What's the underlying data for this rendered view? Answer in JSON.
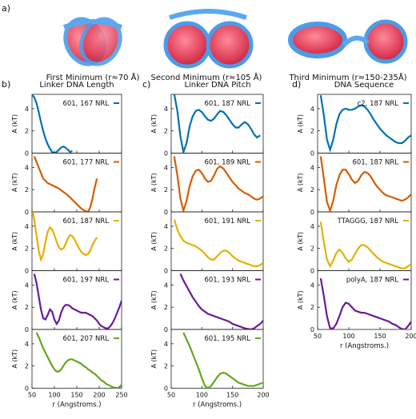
{
  "figure": {
    "panel_a_label": "a)",
    "minima": [
      {
        "caption": "First Minimum (r≈70 Å)"
      },
      {
        "caption": "Second Minimum (r≈105 Å)"
      },
      {
        "caption": "Third Minimum (r≈150-235Å)"
      }
    ]
  },
  "chart_data": [
    {
      "type": "line",
      "panel_label": "b)",
      "title": "Linker DNA Length",
      "xlabel": "r (Angstroms.)",
      "ylabel": "A (kT)",
      "xlim": [
        50,
        250
      ],
      "ylim": [
        0,
        5
      ],
      "xticks": [
        50,
        100,
        150,
        200,
        250
      ],
      "yticks": [
        0,
        2,
        4
      ],
      "series": [
        {
          "name": "601, 167 NRL",
          "color": "#0072b2",
          "x": [
            50,
            55,
            60,
            65,
            70,
            75,
            80,
            85,
            90,
            95,
            100,
            105,
            110,
            115,
            120,
            125,
            130,
            135,
            140
          ],
          "y": [
            5.3,
            5.0,
            4.5,
            3.7,
            2.8,
            2.0,
            1.3,
            0.8,
            0.4,
            0.1,
            0.0,
            0.1,
            0.3,
            0.5,
            0.6,
            0.5,
            0.3,
            0.1,
            0.2
          ]
        },
        {
          "name": "601, 177 NRL",
          "color": "#d55e00",
          "x": [
            55,
            60,
            65,
            70,
            75,
            80,
            85,
            90,
            95,
            100,
            110,
            120,
            130,
            140,
            150,
            160,
            170,
            175,
            180,
            185,
            190,
            195
          ],
          "y": [
            5.0,
            4.5,
            4.0,
            3.5,
            3.0,
            2.8,
            2.6,
            2.5,
            2.4,
            2.3,
            2.1,
            1.8,
            1.5,
            1.1,
            0.7,
            0.3,
            0.05,
            0.0,
            0.4,
            1.2,
            2.2,
            3.0
          ]
        },
        {
          "name": "601, 187 NRL",
          "color": "#e6b000",
          "x": [
            52,
            55,
            60,
            65,
            70,
            75,
            80,
            85,
            90,
            95,
            100,
            105,
            110,
            115,
            120,
            125,
            130,
            135,
            140,
            145,
            150,
            155,
            160,
            165,
            170,
            175,
            180,
            185,
            190,
            195
          ],
          "y": [
            5.3,
            4.6,
            3.2,
            1.8,
            1.0,
            1.5,
            2.6,
            3.5,
            3.9,
            3.7,
            3.2,
            2.6,
            2.1,
            1.9,
            2.0,
            2.4,
            2.9,
            3.2,
            3.1,
            2.8,
            2.4,
            2.0,
            1.7,
            1.5,
            1.4,
            1.5,
            1.8,
            2.3,
            2.7,
            3.0
          ]
        },
        {
          "name": "601, 197 NRL",
          "color": "#6a1b9a",
          "x": [
            55,
            60,
            65,
            70,
            75,
            80,
            85,
            90,
            95,
            100,
            105,
            110,
            115,
            120,
            125,
            130,
            135,
            140,
            145,
            150,
            155,
            160,
            165,
            170,
            175,
            180,
            185,
            190,
            195,
            200,
            205,
            210,
            215,
            220,
            225,
            230,
            235,
            240,
            245,
            250
          ],
          "y": [
            5.0,
            4.2,
            3.0,
            1.8,
            1.0,
            0.9,
            1.3,
            1.8,
            1.6,
            0.9,
            0.5,
            0.8,
            1.5,
            2.0,
            2.2,
            2.2,
            2.1,
            1.9,
            1.8,
            1.7,
            1.6,
            1.5,
            1.5,
            1.5,
            1.4,
            1.3,
            1.2,
            1.0,
            0.8,
            0.5,
            0.3,
            0.2,
            0.1,
            0.1,
            0.3,
            0.6,
            1.0,
            1.5,
            2.0,
            2.6
          ]
        },
        {
          "name": "601, 207 NRL",
          "color": "#66a61e",
          "x": [
            60,
            65,
            70,
            75,
            80,
            85,
            90,
            95,
            100,
            105,
            110,
            115,
            120,
            125,
            130,
            135,
            140,
            145,
            150,
            155,
            160,
            165,
            170,
            175,
            180,
            185,
            190,
            195,
            200,
            205,
            210,
            215,
            220,
            225,
            230,
            235,
            240,
            245,
            250
          ],
          "y": [
            5.0,
            4.6,
            4.1,
            3.6,
            3.2,
            2.8,
            2.4,
            2.0,
            1.7,
            1.5,
            1.5,
            1.7,
            2.0,
            2.3,
            2.5,
            2.6,
            2.6,
            2.5,
            2.4,
            2.3,
            2.2,
            2.0,
            1.9,
            1.7,
            1.6,
            1.4,
            1.3,
            1.1,
            0.9,
            0.7,
            0.6,
            0.4,
            0.3,
            0.2,
            0.1,
            0.05,
            0.0,
            0.1,
            0.3
          ]
        }
      ]
    },
    {
      "type": "line",
      "panel_label": "c)",
      "title": "Linker DNA Pitch",
      "xlabel": "r (Angstroms.)",
      "ylabel": "A (kT)",
      "xlim": [
        50,
        200
      ],
      "ylim": [
        0,
        5
      ],
      "xticks": [
        50,
        100,
        150,
        200
      ],
      "yticks": [
        0,
        2,
        4
      ],
      "series": [
        {
          "name": "601, 187 NRL",
          "color": "#0072b2",
          "x": [
            55,
            60,
            65,
            70,
            75,
            80,
            85,
            90,
            95,
            100,
            105,
            110,
            115,
            120,
            125,
            130,
            135,
            140,
            145,
            150,
            155,
            160,
            165,
            170,
            175,
            180,
            185,
            190,
            195
          ],
          "y": [
            5.3,
            3.8,
            1.5,
            0.1,
            0.9,
            2.4,
            3.3,
            3.8,
            3.9,
            3.7,
            3.3,
            3.0,
            2.9,
            3.1,
            3.5,
            3.8,
            3.7,
            3.4,
            3.0,
            2.6,
            2.3,
            2.3,
            2.6,
            2.8,
            2.6,
            2.2,
            1.7,
            1.4,
            1.6
          ]
        },
        {
          "name": "601, 189 NRL",
          "color": "#d55e00",
          "x": [
            55,
            60,
            65,
            70,
            75,
            80,
            85,
            90,
            95,
            100,
            105,
            110,
            115,
            120,
            125,
            130,
            135,
            140,
            145,
            150,
            155,
            160,
            165,
            170,
            175,
            180,
            185,
            190,
            195,
            200
          ],
          "y": [
            5.0,
            3.3,
            1.2,
            0.1,
            1.0,
            2.3,
            3.2,
            3.7,
            3.8,
            3.5,
            3.0,
            2.7,
            2.8,
            3.3,
            3.9,
            4.1,
            3.9,
            3.5,
            3.1,
            2.7,
            2.4,
            2.1,
            1.9,
            1.7,
            1.6,
            1.4,
            1.2,
            1.1,
            1.2,
            1.4
          ]
        },
        {
          "name": "601, 191 NRL",
          "color": "#e6b000",
          "x": [
            55,
            60,
            65,
            70,
            75,
            80,
            85,
            90,
            95,
            100,
            105,
            110,
            115,
            120,
            125,
            130,
            135,
            140,
            145,
            150,
            155,
            160,
            165,
            170,
            175,
            180,
            185,
            190,
            195,
            200
          ],
          "y": [
            4.6,
            3.7,
            3.1,
            2.7,
            2.5,
            2.4,
            2.3,
            2.2,
            2.0,
            1.8,
            1.5,
            1.2,
            1.0,
            1.0,
            1.3,
            1.6,
            1.8,
            1.8,
            1.6,
            1.3,
            1.1,
            0.9,
            0.8,
            0.7,
            0.6,
            0.5,
            0.4,
            0.4,
            0.5,
            0.7
          ]
        },
        {
          "name": "601, 193 NRL",
          "color": "#6a1b9a",
          "x": [
            65,
            70,
            75,
            80,
            85,
            90,
            95,
            100,
            105,
            110,
            115,
            120,
            125,
            130,
            135,
            140,
            145,
            150,
            155,
            160,
            165,
            170,
            175,
            180,
            185,
            190,
            195,
            200
          ],
          "y": [
            5.0,
            4.4,
            3.9,
            3.4,
            2.9,
            2.5,
            2.1,
            1.8,
            1.6,
            1.4,
            1.3,
            1.2,
            1.1,
            1.0,
            0.9,
            0.8,
            0.7,
            0.5,
            0.4,
            0.3,
            0.2,
            0.1,
            0.05,
            0.0,
            0.1,
            0.3,
            0.5,
            0.8
          ]
        },
        {
          "name": "601, 195 NRL",
          "color": "#66a61e",
          "x": [
            70,
            75,
            80,
            85,
            90,
            95,
            100,
            105,
            110,
            115,
            120,
            125,
            130,
            135,
            140,
            145,
            150,
            155,
            160,
            165,
            170,
            175,
            180,
            185,
            190,
            195,
            200
          ],
          "y": [
            5.0,
            4.4,
            3.8,
            3.1,
            2.4,
            1.7,
            0.9,
            0.2,
            0.0,
            0.2,
            0.6,
            1.0,
            1.3,
            1.4,
            1.3,
            1.1,
            0.9,
            0.7,
            0.5,
            0.4,
            0.3,
            0.2,
            0.2,
            0.2,
            0.3,
            0.4,
            0.5
          ]
        }
      ]
    },
    {
      "type": "line",
      "panel_label": "d)",
      "title": "DNA Sequence",
      "xlabel": "r (Angstroms.)",
      "ylabel": "A (kT)",
      "xlim": [
        50,
        200
      ],
      "ylim": [
        0,
        5
      ],
      "xticks": [
        50,
        100,
        150,
        200
      ],
      "yticks": [
        0,
        2,
        4
      ],
      "series": [
        {
          "name": "c2, 187 NRL",
          "color": "#0072b2",
          "x": [
            55,
            60,
            65,
            70,
            75,
            80,
            85,
            90,
            95,
            100,
            105,
            110,
            115,
            120,
            125,
            130,
            135,
            140,
            145,
            150,
            155,
            160,
            165,
            170,
            175,
            180,
            185,
            190,
            195,
            200
          ],
          "y": [
            5.2,
            3.4,
            1.2,
            0.3,
            1.2,
            2.6,
            3.5,
            3.9,
            4.0,
            3.9,
            3.9,
            4.0,
            4.2,
            4.3,
            4.2,
            3.9,
            3.5,
            3.0,
            2.6,
            2.2,
            1.9,
            1.6,
            1.4,
            1.2,
            1.0,
            0.9,
            0.9,
            1.1,
            1.4,
            1.6
          ]
        },
        {
          "name": "601, 187 NRL",
          "color": "#d55e00",
          "x": [
            55,
            60,
            65,
            70,
            75,
            80,
            85,
            90,
            95,
            100,
            105,
            110,
            115,
            120,
            125,
            130,
            135,
            140,
            145,
            150,
            155,
            160,
            165,
            170,
            175,
            180,
            185,
            190,
            195,
            200
          ],
          "y": [
            5.0,
            3.0,
            0.9,
            0.1,
            1.0,
            2.4,
            3.3,
            3.8,
            3.8,
            3.4,
            2.9,
            2.6,
            2.8,
            3.3,
            3.6,
            3.5,
            3.2,
            2.7,
            2.3,
            2.0,
            1.7,
            1.5,
            1.4,
            1.3,
            1.2,
            1.1,
            1.0,
            1.1,
            1.3,
            1.6
          ]
        },
        {
          "name": "TTAGGG, 187 NRL",
          "color": "#e6b000",
          "x": [
            55,
            60,
            65,
            70,
            75,
            80,
            85,
            90,
            95,
            100,
            105,
            110,
            115,
            120,
            125,
            130,
            135,
            140,
            145,
            150,
            155,
            160,
            165,
            170,
            175,
            180,
            185,
            190,
            195,
            200
          ],
          "y": [
            4.4,
            2.6,
            1.0,
            0.4,
            0.9,
            1.6,
            1.9,
            1.6,
            1.1,
            0.8,
            1.0,
            1.5,
            2.0,
            2.3,
            2.3,
            2.1,
            1.8,
            1.5,
            1.2,
            1.0,
            0.8,
            0.7,
            0.6,
            0.5,
            0.4,
            0.3,
            0.2,
            0.2,
            0.4,
            0.6
          ]
        },
        {
          "name": "polyA, 187 NRL",
          "color": "#6a1b9a",
          "x": [
            55,
            60,
            65,
            70,
            75,
            80,
            85,
            90,
            95,
            100,
            105,
            110,
            115,
            120,
            125,
            130,
            135,
            140,
            145,
            150,
            155,
            160,
            165,
            170,
            175,
            180,
            185,
            190,
            195,
            200
          ],
          "y": [
            4.6,
            3.0,
            1.2,
            0.1,
            0.1,
            0.5,
            1.2,
            2.0,
            2.4,
            2.3,
            2.0,
            1.7,
            1.6,
            1.5,
            1.5,
            1.4,
            1.3,
            1.2,
            1.1,
            1.0,
            0.9,
            0.8,
            0.7,
            0.5,
            0.4,
            0.2,
            0.05,
            0.0,
            0.3,
            0.7
          ]
        }
      ]
    }
  ]
}
